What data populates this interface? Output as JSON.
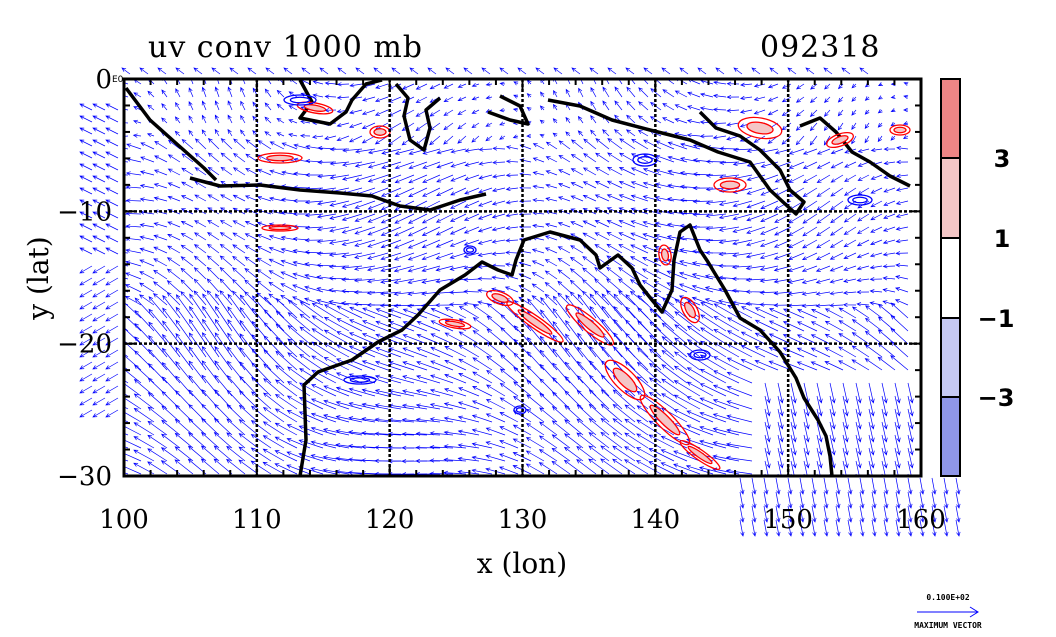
{
  "chart_data": {
    "type": "vector-contour-map",
    "title": "uv conv 1000 mb",
    "date_label": "092318",
    "xlabel": "x (lon)",
    "ylabel": "y (lat)",
    "xlim": [
      100,
      160
    ],
    "ylim": [
      -30,
      0
    ],
    "x_ticks": [
      100,
      110,
      120,
      130,
      140,
      150,
      160
    ],
    "y_ticks": [
      0,
      -10,
      -20,
      -30
    ],
    "x_tick_labels": [
      "100",
      "110",
      "120",
      "130",
      "140",
      "150",
      "160"
    ],
    "y_tick_labels": [
      "0",
      "−10",
      "−20",
      "−30"
    ],
    "y_tick_extra": "E0",
    "grid": true,
    "colorbar": {
      "tick_labels": [
        "3",
        "1",
        "−1",
        "−3"
      ],
      "levels": [
        -5,
        -3,
        -1,
        1,
        3,
        5
      ],
      "colors": [
        "#8f96e8",
        "#c5c8f3",
        "#ffffff",
        "#f4c6c6",
        "#ee8585"
      ]
    },
    "reference_vector": {
      "magnitude_label": "0.100E+02",
      "caption": "MAXIMUM VECTOR"
    },
    "series": [
      {
        "name": "coastline",
        "color": "#000000"
      },
      {
        "name": "wind vectors",
        "color": "#0000ff"
      },
      {
        "name": "convergence positive",
        "color": "#ff0000"
      },
      {
        "name": "convergence negative",
        "color": "#0000ff"
      }
    ]
  }
}
